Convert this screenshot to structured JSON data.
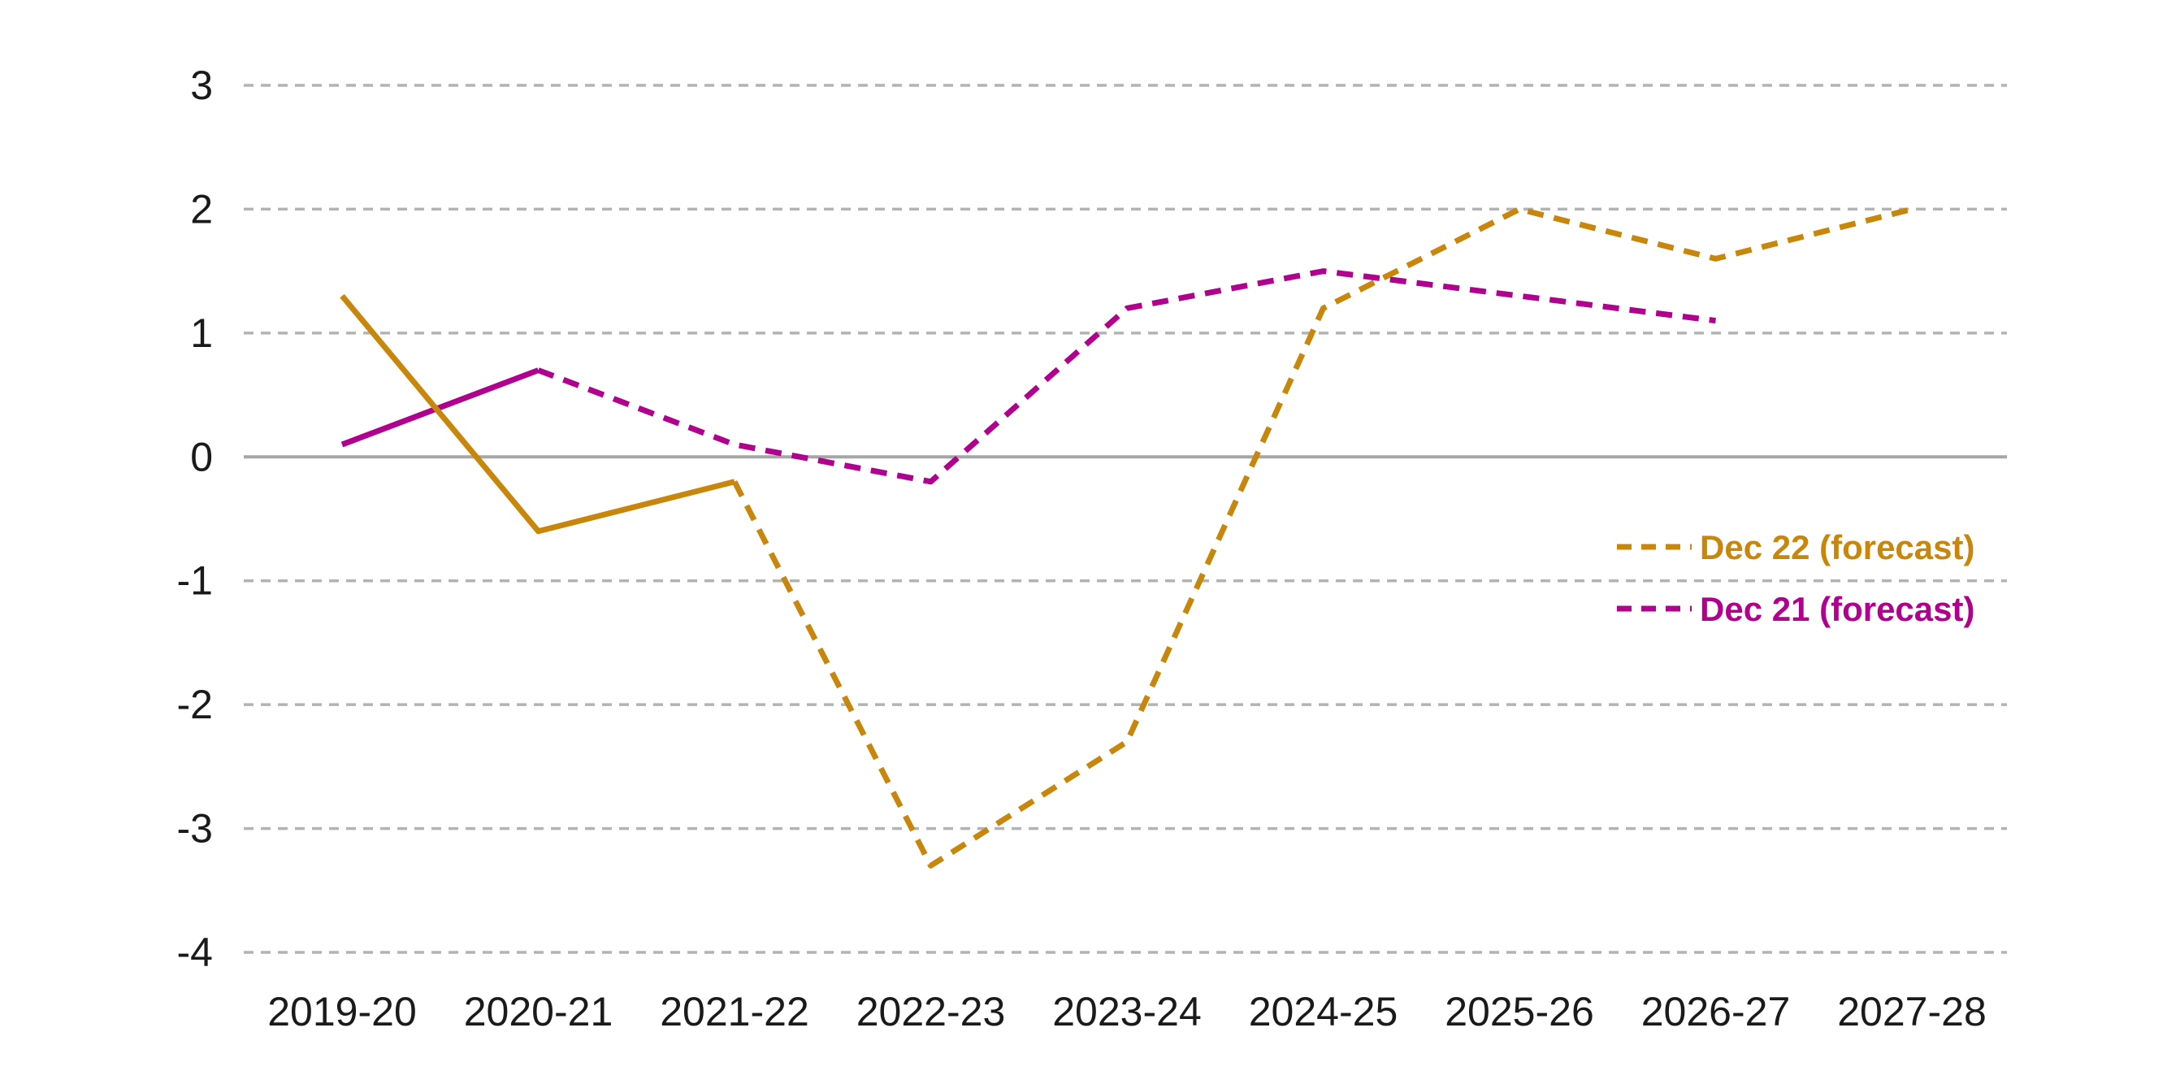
{
  "chart_data": {
    "type": "line",
    "categories": [
      "2019-20",
      "2020-21",
      "2021-22",
      "2022-23",
      "2023-24",
      "2024-25",
      "2025-26",
      "2026-27",
      "2027-28"
    ],
    "ylim": [
      -4,
      3
    ],
    "yticks": [
      "3",
      "2",
      "1",
      "0",
      "-1",
      "-2",
      "-3",
      "-4"
    ],
    "grid": true,
    "legend_position": "right",
    "series": [
      {
        "name": "Dec 22 (forecast)",
        "color": "#C8860A",
        "values": [
          1.3,
          -0.6,
          -0.2,
          -3.3,
          -2.3,
          1.2,
          2.0,
          1.6,
          2.0
        ],
        "outturn_through_index": 2
      },
      {
        "name": "Dec 21 (forecast)",
        "color": "#B0008E",
        "values": [
          0.1,
          0.7,
          0.1,
          -0.2,
          1.2,
          1.5,
          1.3,
          1.1,
          null
        ],
        "outturn_through_index": 1
      }
    ]
  }
}
